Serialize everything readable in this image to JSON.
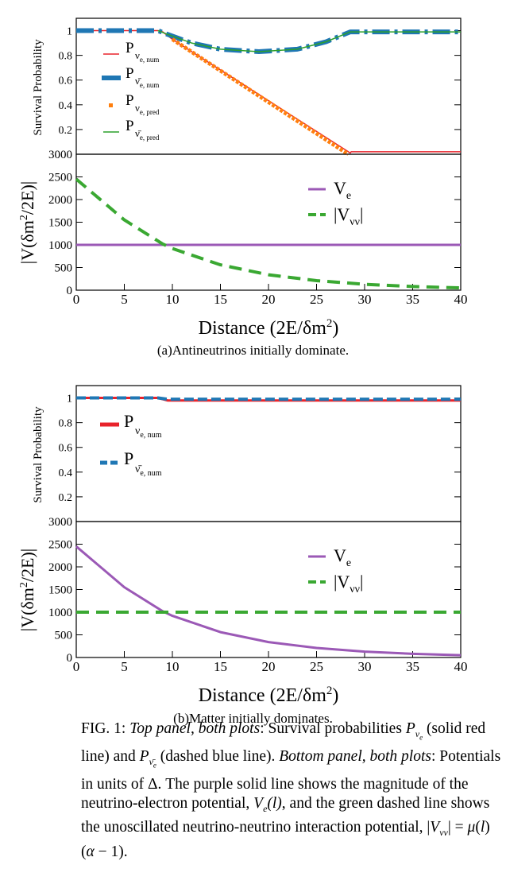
{
  "figure_a": {
    "caption": "(a)Antineutrinos initially dominate.",
    "top": {
      "ylabel": "Survival Probability",
      "yticks": [
        "0.2",
        "0.4",
        "0.6",
        "0.8",
        "1"
      ],
      "legend": [
        "P_{ν_{e, num}}",
        "P_{ν̄_{e, num}}",
        "P_{ν_{e, pred}}",
        "P_{ν̄_{e, pred}}"
      ]
    },
    "bottom": {
      "ylabel": "|V(δm²/2E)|",
      "xlabel": "Distance (2E/δm²)",
      "yticks": [
        "0",
        "500",
        "1000",
        "1500",
        "2000",
        "2500",
        "3000"
      ],
      "xticks": [
        "0",
        "5",
        "10",
        "15",
        "20",
        "25",
        "30",
        "35",
        "40"
      ],
      "legend": [
        "V_e",
        "|V_νν|"
      ]
    }
  },
  "figure_b": {
    "caption": "(b)Matter initially dominates.",
    "top": {
      "ylabel": "Survival Probability",
      "yticks": [
        "0.2",
        "0.4",
        "0.6",
        "0.8",
        "1"
      ],
      "legend": [
        "P_{ν_{e, num}}",
        "P_{ν̄_{e, num}}"
      ]
    },
    "bottom": {
      "ylabel": "|V(δm²/2E)|",
      "xlabel": "Distance (2E/δm²)",
      "yticks": [
        "0",
        "500",
        "1000",
        "1500",
        "2000",
        "2500",
        "3000"
      ],
      "xticks": [
        "0",
        "5",
        "10",
        "15",
        "20",
        "25",
        "30",
        "35",
        "40"
      ],
      "legend": [
        "V_e",
        "|V_νν|"
      ]
    }
  },
  "caption_text": {
    "label": "FIG. 1:",
    "top_panel": "Top panel, both plots",
    "p1": ": Survival probabilities ",
    "p2": " (solid red line) and ",
    "p3": " (dashed blue line). ",
    "bottom_panel": "Bottom panel, both plots",
    "p4": ": Potentials in units of Δ. The purple solid line shows the magnitude of the neutrino-electron potential, ",
    "p5": ", and the green dashed line shows the unoscillated neutrino-neutrino interaction potential, ",
    "p6": "."
  },
  "chart_data": [
    {
      "type": "line",
      "panel": "a-top",
      "xlim": [
        0,
        40
      ],
      "ylim": [
        0,
        1.1
      ],
      "series": [
        {
          "name": "P_{ν_{e, num}}",
          "color": "#e8232b",
          "x": [
            0,
            8.5,
            9,
            10,
            28.5,
            28.6,
            40
          ],
          "y": [
            1,
            1,
            0.99,
            0.93,
            0.01,
            0.02,
            0.02
          ]
        },
        {
          "name": "P_{ν̄_{e, num}}",
          "color": "#1f77b4",
          "x": [
            0,
            8.5,
            9.5,
            12,
            15,
            19,
            23,
            26,
            28.5,
            40
          ],
          "y": [
            1,
            1,
            0.97,
            0.9,
            0.85,
            0.83,
            0.85,
            0.91,
            0.99,
            0.99
          ]
        },
        {
          "name": "P_{ν_{e, pred}}",
          "color": "#ff7f0e",
          "x": [
            10,
            28.3
          ],
          "y": [
            0.93,
            0.0
          ]
        },
        {
          "name": "P_{ν̄_{e, pred}}",
          "color": "#2ca02c",
          "x": [
            8.5,
            9.5,
            12,
            15,
            19,
            23,
            26,
            28.5,
            40
          ],
          "y": [
            1,
            0.97,
            0.9,
            0.85,
            0.83,
            0.85,
            0.91,
            0.99,
            0.99
          ]
        }
      ]
    },
    {
      "type": "line",
      "panel": "a-bottom",
      "xlim": [
        0,
        40
      ],
      "ylim": [
        0,
        3000
      ],
      "series": [
        {
          "name": "V_e",
          "color": "#9b59b6",
          "x": [
            0,
            40
          ],
          "y": [
            1000,
            1000
          ]
        },
        {
          "name": "|V_νν|",
          "color": "#3aa832",
          "x": [
            0,
            5,
            9,
            10,
            15,
            20,
            25,
            30,
            35,
            40
          ],
          "y": [
            2450,
            1550,
            1020,
            920,
            560,
            340,
            210,
            130,
            80,
            50
          ]
        }
      ]
    },
    {
      "type": "line",
      "panel": "b-top",
      "xlim": [
        0,
        40
      ],
      "ylim": [
        0,
        1.1
      ],
      "series": [
        {
          "name": "P_{ν_{e, num}}",
          "color": "#e8232b",
          "x": [
            0,
            8.5,
            9.5,
            40
          ],
          "y": [
            1,
            1,
            0.98,
            0.98
          ]
        },
        {
          "name": "P_{ν̄_{e, num}}",
          "color": "#1f77b4",
          "x": [
            0,
            8.5,
            9.5,
            40
          ],
          "y": [
            1,
            1,
            0.99,
            0.99
          ]
        }
      ]
    },
    {
      "type": "line",
      "panel": "b-bottom",
      "xlim": [
        0,
        40
      ],
      "ylim": [
        0,
        3000
      ],
      "series": [
        {
          "name": "V_e",
          "color": "#9b59b6",
          "x": [
            0,
            5,
            9,
            10,
            15,
            20,
            25,
            30,
            35,
            40
          ],
          "y": [
            2450,
            1550,
            1020,
            920,
            560,
            340,
            210,
            130,
            80,
            50
          ]
        },
        {
          "name": "|V_νν|",
          "color": "#3aa832",
          "x": [
            0,
            40
          ],
          "y": [
            1000,
            1000
          ]
        }
      ]
    }
  ]
}
